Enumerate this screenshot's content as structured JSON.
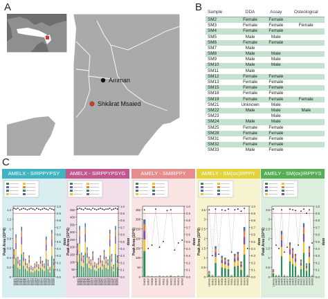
{
  "figure": {
    "panel_a_label": "A",
    "panel_b_label": "B",
    "panel_c_label": "C"
  },
  "map": {
    "places": [
      {
        "name": "Amman",
        "color": "#111111"
      },
      {
        "name": "Shkārat Msaied",
        "color": "#d6362c"
      }
    ],
    "land_color": "#a9aaab",
    "sea_color": "#ffffff",
    "inset_highlight_color": "#d6362c"
  },
  "table": {
    "headers": [
      "Sample",
      "DDA",
      "Assay",
      "Osteological"
    ],
    "rows": [
      [
        "SM2",
        "Female",
        "Female",
        ""
      ],
      [
        "SM3",
        "Female",
        "Female",
        "Female"
      ],
      [
        "SM4",
        "Female",
        "Female",
        ""
      ],
      [
        "SM5",
        "Male",
        "Male",
        ""
      ],
      [
        "SM6",
        "Female",
        "Female",
        ""
      ],
      [
        "SM7",
        "Male",
        "",
        ""
      ],
      [
        "SM8",
        "Male",
        "Male",
        ""
      ],
      [
        "SM9",
        "Male",
        "Male",
        ""
      ],
      [
        "SM10",
        "Male",
        "Male",
        ""
      ],
      [
        "SM11",
        "Male",
        "",
        ""
      ],
      [
        "SM12",
        "Female",
        "Female",
        ""
      ],
      [
        "SM13",
        "Female",
        "Female",
        ""
      ],
      [
        "SM15",
        "Female",
        "Female",
        ""
      ],
      [
        "SM18",
        "Female",
        "Female",
        ""
      ],
      [
        "SM19",
        "Female",
        "Female",
        "Female"
      ],
      [
        "SM21",
        "Unknown",
        "Male",
        ""
      ],
      [
        "SM22",
        "Male",
        "Male",
        "Male"
      ],
      [
        "SM23",
        "",
        "Male",
        ""
      ],
      [
        "SM24",
        "Male",
        "Male",
        ""
      ],
      [
        "SM25",
        "Female",
        "Female",
        ""
      ],
      [
        "SM28",
        "Female",
        "Female",
        ""
      ],
      [
        "SM31",
        "Female",
        "Female",
        ""
      ],
      [
        "SM32",
        "Female",
        "Female",
        ""
      ],
      [
        "SM33",
        "Male",
        "Female",
        ""
      ]
    ],
    "stripe_color": "#c5e1cf"
  },
  "chart_data": [
    {
      "type": "bar",
      "title": "AMELX - SIRPPYPSY",
      "header_color": "#3fb3bf",
      "body_color": "#d8eef1",
      "ylabel": "Peak Area (10^6)",
      "y2label": "dotp",
      "ylim": [
        0,
        1.5
      ],
      "y2lim": [
        0,
        1.0
      ],
      "yticks": [
        "0",
        "0.2",
        "0.4",
        "0.6",
        "0.8",
        "1",
        "1.2",
        "1.4"
      ],
      "y2ticks": [
        "0.0",
        "0.1",
        "0.2",
        "0.3",
        "0.4",
        "0.5",
        "0.6",
        "0.7",
        "0.8",
        "0.9",
        "1.0"
      ],
      "categories": [
        "SM02",
        "SM03",
        "SM04",
        "SM05",
        "SM06",
        "SM08",
        "SM09",
        "SM10",
        "SM12",
        "SM13",
        "SM15",
        "SM18",
        "SM19",
        "SM21",
        "SM22",
        "SM23",
        "SM24",
        "SM25",
        "SM28",
        "SM31",
        "SM32",
        "SM33"
      ],
      "values": [
        0.62,
        0.95,
        0.45,
        0.38,
        1.12,
        0.55,
        0.4,
        0.3,
        0.48,
        0.25,
        0.22,
        0.3,
        0.34,
        0.28,
        0.45,
        0.36,
        0.3,
        0.9,
        0.38,
        0.22,
        1.05,
        0.4
      ],
      "dotp": [
        0.97,
        0.96,
        0.97,
        0.95,
        0.96,
        0.97,
        0.96,
        0.95,
        0.96,
        0.97,
        0.96,
        0.95,
        0.97,
        0.96,
        0.95,
        0.96,
        0.97,
        0.96,
        0.95,
        0.97,
        0.96,
        0.95
      ],
      "threshold": 0.9
    },
    {
      "type": "bar",
      "title": "AMELX - SIRPPYPSYG",
      "header_color": "#c2578d",
      "body_color": "#f3dfe9",
      "ylabel": "Peak Area (10^6)",
      "y2label": "dotp",
      "ylim": [
        0,
        500
      ],
      "y2lim": [
        0,
        1.0
      ],
      "yticks": [
        "0",
        "50",
        "100",
        "150",
        "200",
        "250",
        "300",
        "350",
        "400",
        "450"
      ],
      "y2ticks": [
        "0.0",
        "0.1",
        "0.2",
        "0.3",
        "0.4",
        "0.5",
        "0.6",
        "0.7",
        "0.8",
        "0.9",
        "1.0"
      ],
      "categories": [
        "SM02",
        "SM03",
        "SM04",
        "SM05",
        "SM06",
        "SM08",
        "SM09",
        "SM10",
        "SM12",
        "SM13",
        "SM15",
        "SM18",
        "SM19",
        "SM21",
        "SM22",
        "SM23",
        "SM24",
        "SM25",
        "SM28",
        "SM31",
        "SM32",
        "SM33"
      ],
      "values": [
        250,
        380,
        180,
        160,
        400,
        220,
        150,
        130,
        190,
        110,
        100,
        140,
        160,
        120,
        200,
        150,
        130,
        350,
        170,
        90,
        380,
        160
      ],
      "dotp": [
        0.96,
        0.97,
        0.96,
        0.95,
        0.97,
        0.96,
        0.96,
        0.95,
        0.97,
        0.96,
        0.95,
        0.96,
        0.97,
        0.96,
        0.95,
        0.96,
        0.96,
        0.97,
        0.95,
        0.96,
        0.97,
        0.96
      ],
      "threshold": 0.9
    },
    {
      "type": "bar",
      "title": "AMELY - SMIRPPY",
      "header_color": "#e78c8c",
      "body_color": "#f9e3e3",
      "ylabel": "Peak Area (10^6)",
      "y2label": "dotp",
      "ylim": [
        0,
        350
      ],
      "y2lim": [
        0,
        1.0
      ],
      "yticks": [
        "0",
        "50",
        "100",
        "150",
        "200",
        "250",
        "300",
        "350"
      ],
      "y2ticks": [
        "0.0",
        "0.1",
        "0.2",
        "0.3",
        "0.4",
        "0.5",
        "0.6",
        "0.7",
        "0.8",
        "0.9",
        "1.0"
      ],
      "categories": [
        "SM05",
        "SM07",
        "SM08",
        "SM09",
        "SM10",
        "SM11",
        "SM21",
        "SM22",
        "SM23",
        "SM24",
        "SM33"
      ],
      "values": [
        300,
        5,
        4,
        3,
        6,
        4,
        5,
        8,
        3,
        6,
        4
      ],
      "dotp": [
        0.95,
        0.4,
        0.45,
        0.96,
        0.42,
        0.5,
        0.94,
        0.95,
        0.38,
        0.48,
        0.52
      ],
      "threshold": 0.9
    },
    {
      "type": "bar",
      "title": "AMELY - SM(ox)IRPPY",
      "header_color": "#e3d23c",
      "body_color": "#f8f3cf",
      "ylabel": "Peak Area (10^6)",
      "y2label": "dotp",
      "ylim": [
        0,
        3.5
      ],
      "y2lim": [
        0,
        1.0
      ],
      "yticks": [
        "0",
        "0.5",
        "1",
        "1.5",
        "2",
        "2.5",
        "3",
        "3.5"
      ],
      "y2ticks": [
        "0.0",
        "0.1",
        "0.2",
        "0.3",
        "0.4",
        "0.5",
        "0.6",
        "0.7",
        "0.8",
        "0.9",
        "1.0"
      ],
      "categories": [
        "Library",
        "SM02",
        "SM05",
        "SM07",
        "SM08",
        "SM09",
        "SM10",
        "SM11",
        "SM21",
        "SM22",
        "SM23",
        "SM24",
        "SM33"
      ],
      "values": [
        0.3,
        0.1,
        1.6,
        0.05,
        1.1,
        1.0,
        0.9,
        0.1,
        1.2,
        1.3,
        0.8,
        2.6,
        0.1
      ],
      "dotp": [
        0.95,
        0.3,
        0.96,
        0.32,
        0.95,
        0.94,
        0.96,
        0.35,
        0.95,
        0.96,
        0.93,
        0.97,
        0.4
      ],
      "threshold": 0.9
    },
    {
      "type": "bar",
      "title": "AMELY - SM(ox)IRPPYS",
      "header_color": "#55ae55",
      "body_color": "#dcefdc",
      "ylabel": "Peak Area (10^6)",
      "y2label": "dotp",
      "ylim": [
        0,
        3.5
      ],
      "y2lim": [
        0,
        1.0
      ],
      "yticks": [
        "0",
        "0.5",
        "1",
        "1.5",
        "2",
        "2.5",
        "3",
        "3.5"
      ],
      "y2ticks": [
        "0.0",
        "0.1",
        "0.2",
        "0.3",
        "0.4",
        "0.5",
        "0.6",
        "0.7",
        "0.8",
        "0.9",
        "1.0"
      ],
      "categories": [
        "Library",
        "SM02",
        "SM03",
        "SM05",
        "SM06",
        "SM07",
        "SM08",
        "SM09",
        "SM10",
        "SM11",
        "SM21",
        "SM22",
        "SM23",
        "SM24",
        "SM33"
      ],
      "values": [
        0.4,
        0.1,
        0.1,
        2.4,
        0.1,
        0.05,
        1.8,
        1.5,
        1.2,
        0.1,
        0.9,
        2.8,
        0.7,
        1.6,
        0.1
      ],
      "dotp": [
        0.96,
        0.45,
        0.4,
        0.95,
        0.35,
        0.42,
        0.96,
        0.95,
        0.94,
        0.45,
        0.93,
        0.96,
        0.9,
        0.95,
        0.48
      ],
      "threshold": 0.9
    }
  ],
  "stack_colors": [
    "#2e8b57",
    "#f2c12e",
    "#7b52a6",
    "#e07b39",
    "#3a6fb0"
  ]
}
